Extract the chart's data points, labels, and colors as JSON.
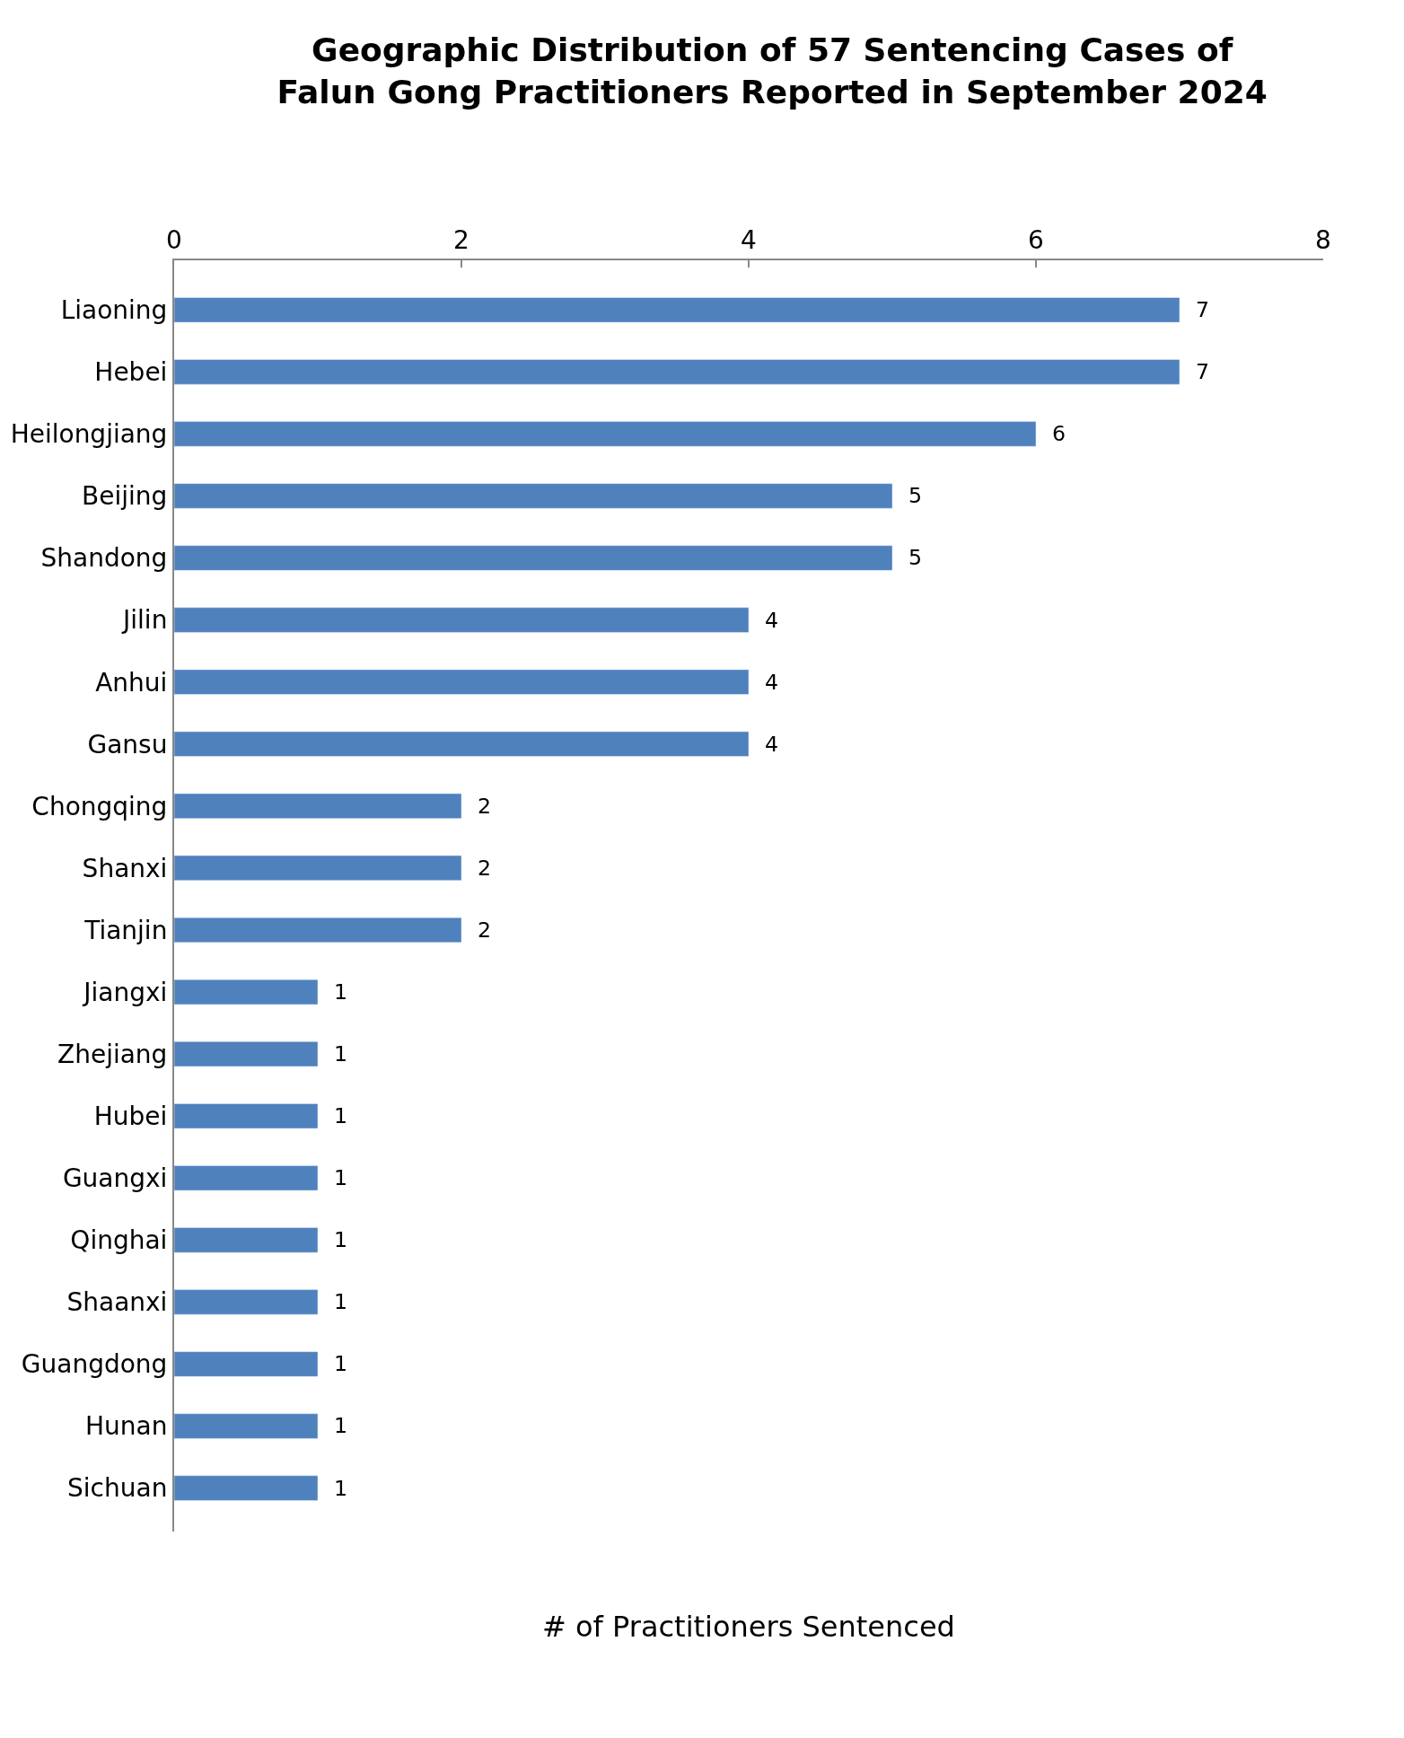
{
  "chart_data": {
    "type": "bar",
    "orientation": "horizontal",
    "title": "Geographic Distribution of 57 Sentencing Cases of\nFalun Gong Practitioners Reported in September 2024",
    "xlabel": "# of Practitioners Sentenced",
    "categories": [
      "Liaoning",
      "Hebei",
      "Heilongjiang",
      "Beijing",
      "Shandong",
      "Jilin",
      "Anhui",
      "Gansu",
      "Chongqing",
      "Shanxi",
      "Tianjin",
      "Jiangxi",
      "Zhejiang",
      "Hubei",
      "Guangxi",
      "Qinghai",
      "Shaanxi",
      "Guangdong",
      "Hunan",
      "Sichuan"
    ],
    "values": [
      7,
      7,
      6,
      5,
      5,
      4,
      4,
      4,
      2,
      2,
      2,
      1,
      1,
      1,
      1,
      1,
      1,
      1,
      1,
      1
    ],
    "color": "#4f81bd",
    "xlim": [
      0,
      8
    ],
    "xticks": [
      0,
      2,
      4,
      6,
      8
    ],
    "data_labels": true,
    "legend": false
  }
}
